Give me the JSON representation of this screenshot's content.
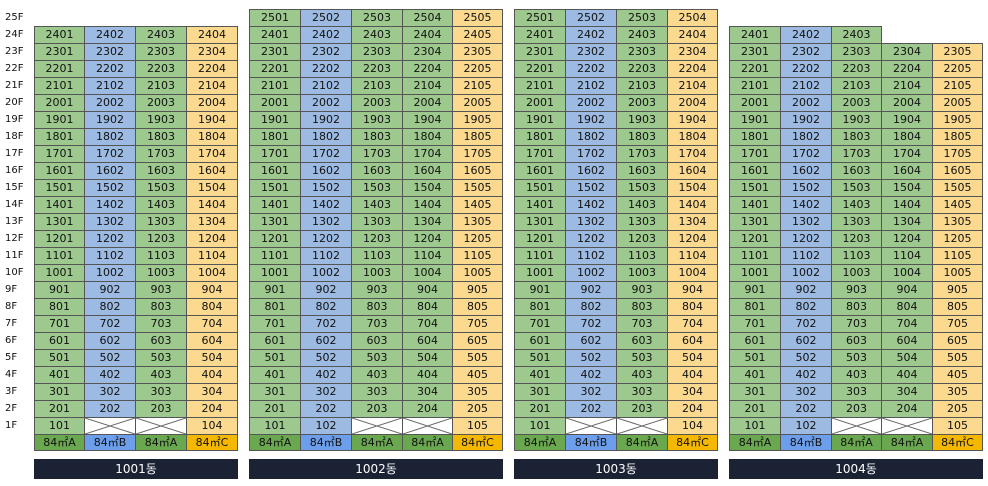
{
  "colors": {
    "A": "#9ec98e",
    "B": "#9dbbe2",
    "C": "#fbd98f",
    "type_A": "#6aa84f",
    "type_B": "#6d9eeb",
    "type_C": "#f5b800",
    "label_bg": "#1a2233"
  },
  "floors": [
    "25F",
    "24F",
    "23F",
    "22F",
    "21F",
    "20F",
    "19F",
    "18F",
    "17F",
    "16F",
    "15F",
    "14F",
    "13F",
    "12F",
    "11F",
    "10F",
    "9F",
    "8F",
    "7F",
    "6F",
    "5F",
    "4F",
    "3F",
    "2F",
    "1F"
  ],
  "buildings": [
    {
      "name": "1001동",
      "lines": [
        {
          "num": 1,
          "type": "84㎡A",
          "color": "A",
          "top": 24,
          "bottom": 1
        },
        {
          "num": 2,
          "type": "84㎡B",
          "color": "B",
          "top": 24,
          "bottom": 2
        },
        {
          "num": 3,
          "type": "84㎡A",
          "color": "A",
          "top": 24,
          "bottom": 2
        },
        {
          "num": 4,
          "type": "84㎡C",
          "color": "C",
          "top": 24,
          "bottom": 1
        }
      ]
    },
    {
      "name": "1002동",
      "lines": [
        {
          "num": 1,
          "type": "84㎡A",
          "color": "A",
          "top": 25,
          "bottom": 1
        },
        {
          "num": 2,
          "type": "84㎡B",
          "color": "B",
          "top": 25,
          "bottom": 1
        },
        {
          "num": 3,
          "type": "84㎡A",
          "color": "A",
          "top": 25,
          "bottom": 2
        },
        {
          "num": 4,
          "type": "84㎡A",
          "color": "A",
          "top": 25,
          "bottom": 2
        },
        {
          "num": 5,
          "type": "84㎡C",
          "color": "C",
          "top": 25,
          "bottom": 1
        }
      ]
    },
    {
      "name": "1003동",
      "lines": [
        {
          "num": 1,
          "type": "84㎡A",
          "color": "A",
          "top": 25,
          "bottom": 1
        },
        {
          "num": 2,
          "type": "84㎡B",
          "color": "B",
          "top": 25,
          "bottom": 2
        },
        {
          "num": 3,
          "type": "84㎡A",
          "color": "A",
          "top": 25,
          "bottom": 2
        },
        {
          "num": 4,
          "type": "84㎡C",
          "color": "C",
          "top": 25,
          "bottom": 1
        }
      ]
    },
    {
      "name": "1004동",
      "lines": [
        {
          "num": 1,
          "type": "84㎡A",
          "color": "A",
          "top": 24,
          "bottom": 1
        },
        {
          "num": 2,
          "type": "84㎡B",
          "color": "B",
          "top": 24,
          "bottom": 1
        },
        {
          "num": 3,
          "type": "84㎡A",
          "color": "A",
          "top": 24,
          "bottom": 2
        },
        {
          "num": 4,
          "type": "84㎡A",
          "color": "A",
          "top": 23,
          "bottom": 2
        },
        {
          "num": 5,
          "type": "84㎡C",
          "color": "C",
          "top": 23,
          "bottom": 1
        }
      ]
    }
  ]
}
